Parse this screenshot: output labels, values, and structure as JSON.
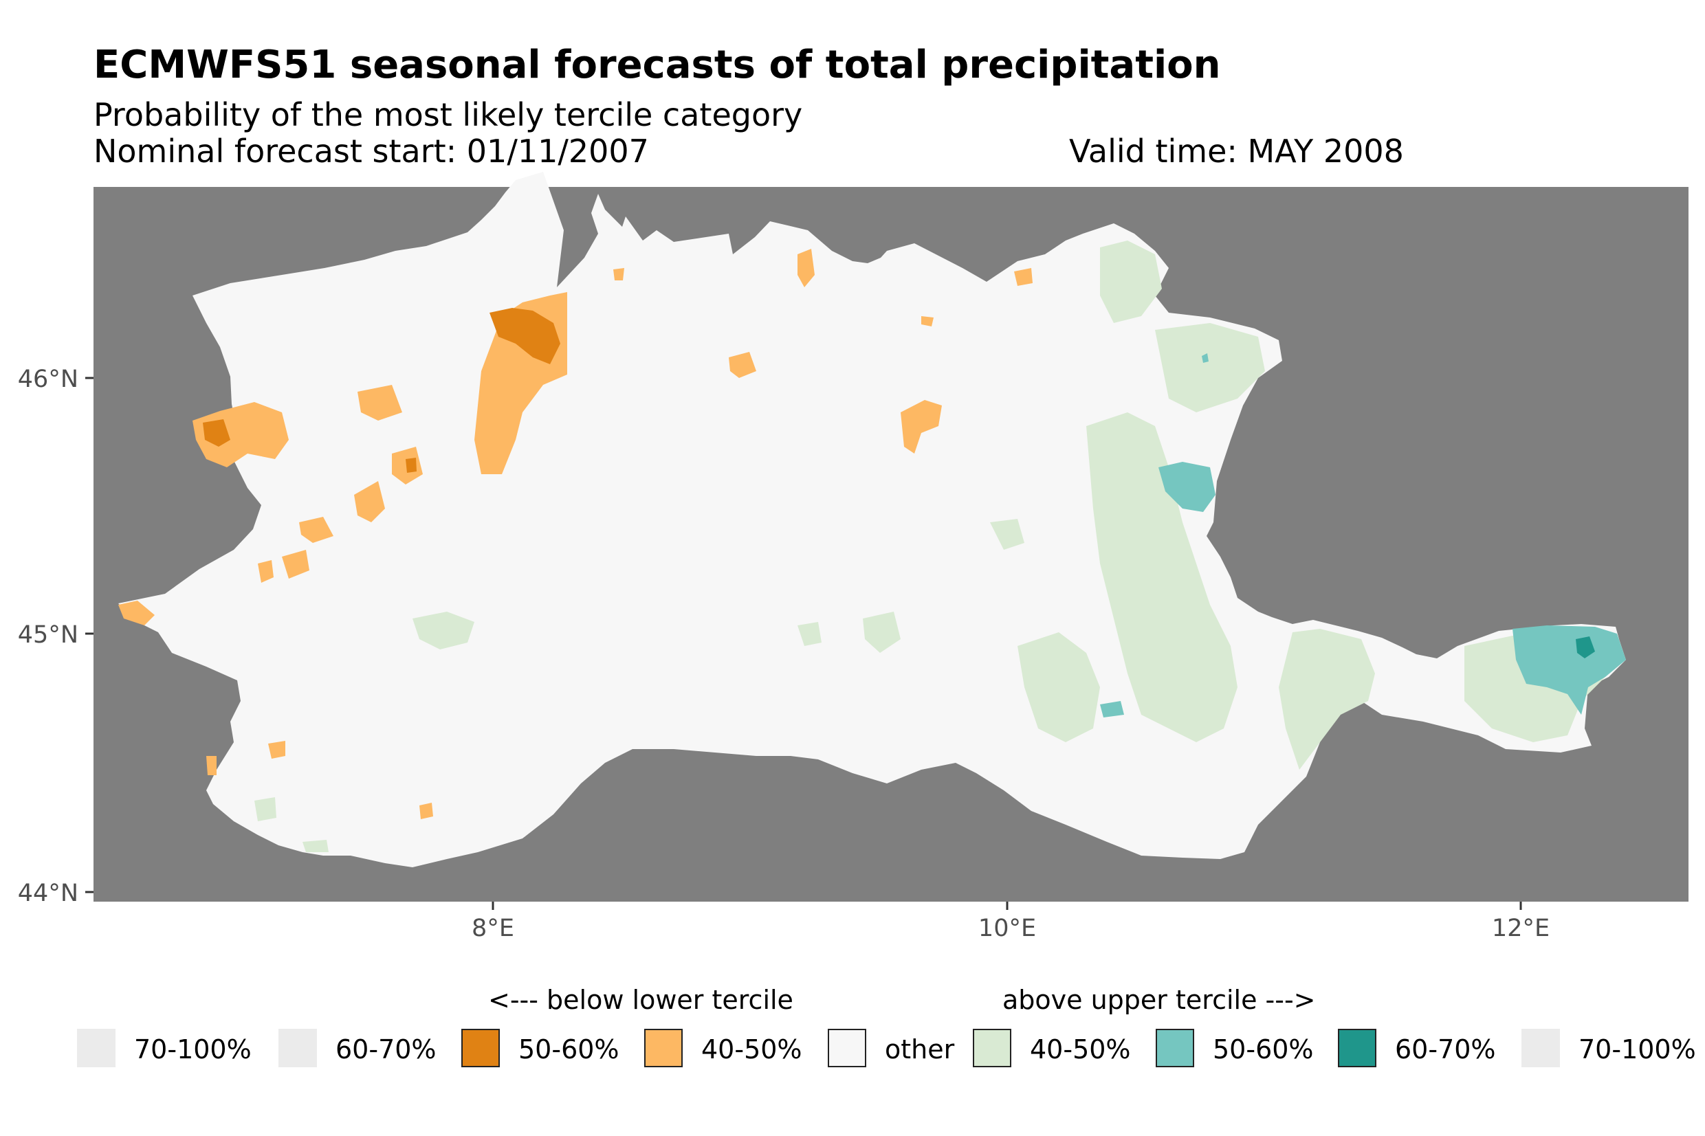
{
  "title": "ECMWFS51 seasonal forecasts of total precipitation",
  "subtitle": "Probability of the most likely tercile category",
  "forecast_start": "Nominal forecast start: 01/11/2007",
  "valid_time": "Valid time: MAY 2008",
  "map": {
    "background_color": "#7f7f7f",
    "y_ticks": [
      "44°N",
      "45°N",
      "46°N"
    ],
    "x_ticks": [
      "8°E",
      "10°E",
      "12°E"
    ],
    "colors": {
      "other": "#f7f7f7",
      "below_40_50": "#fdb863",
      "below_50_60": "#e08214",
      "above_40_50": "#d9ead3",
      "above_50_60": "#75c6c0",
      "above_60_70": "#1f968b"
    }
  },
  "legend": {
    "below_heading": "<--- below lower tercile",
    "above_heading": "above upper tercile --->",
    "items": [
      {
        "label": "70-100%",
        "color": "#ebebeb"
      },
      {
        "label": "60-70%",
        "color": "#ebebeb"
      },
      {
        "label": "50-60%",
        "color": "#e08214"
      },
      {
        "label": "40-50%",
        "color": "#fdb863"
      },
      {
        "label": "other",
        "color": "#f7f7f7"
      },
      {
        "label": "40-50%",
        "color": "#d9ead3"
      },
      {
        "label": "50-60%",
        "color": "#75c6c0"
      },
      {
        "label": "60-70%",
        "color": "#1f968b"
      },
      {
        "label": "70-100%",
        "color": "#ebebeb"
      }
    ]
  }
}
